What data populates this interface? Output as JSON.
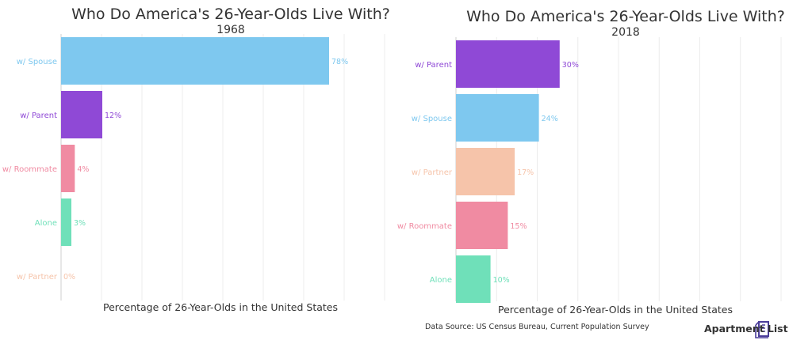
{
  "chart_data": [
    {
      "type": "bar",
      "orientation": "horizontal",
      "title": "Who Do America's 26-Year-Olds Live With?",
      "subtitle": "1968",
      "xlabel": "Percentage of 26-Year-Olds in the United States",
      "xlim": [
        0,
        78
      ],
      "grid": true,
      "categories": [
        "w/ Spouse",
        "w/ Parent",
        "w/ Roommate",
        "Alone",
        "w/ Partner"
      ],
      "values": [
        78,
        12,
        4,
        3,
        0
      ],
      "value_labels": [
        "78%",
        "12%",
        "4%",
        "3%",
        "0%"
      ],
      "colors": [
        "#7ec8ef",
        "#8f49d6",
        "#f08ba2",
        "#6fe0b9",
        "#f6c4aa"
      ]
    },
    {
      "type": "bar",
      "orientation": "horizontal",
      "title": "Who Do America's 26-Year-Olds Live With?",
      "subtitle": "2018",
      "xlabel": "Percentage of 26-Year-Olds in the United States",
      "xlim": [
        0,
        78
      ],
      "grid": true,
      "categories": [
        "w/ Parent",
        "w/ Spouse",
        "w/ Partner",
        "w/ Roommate",
        "Alone"
      ],
      "values": [
        30,
        24,
        17,
        15,
        10
      ],
      "value_labels": [
        "30%",
        "24%",
        "17%",
        "15%",
        "10%"
      ],
      "colors": [
        "#8f49d6",
        "#7ec8ef",
        "#f6c4aa",
        "#f08ba2",
        "#6fe0b9"
      ]
    }
  ],
  "footer": {
    "source": "Data Source: US Census Bureau, Current Population Survey",
    "brand": "Apartment List"
  },
  "colors": {
    "spouse": "#7ec8ef",
    "parent": "#8f49d6",
    "roommate": "#f08ba2",
    "alone": "#6fe0b9",
    "partner": "#f6c4aa"
  }
}
